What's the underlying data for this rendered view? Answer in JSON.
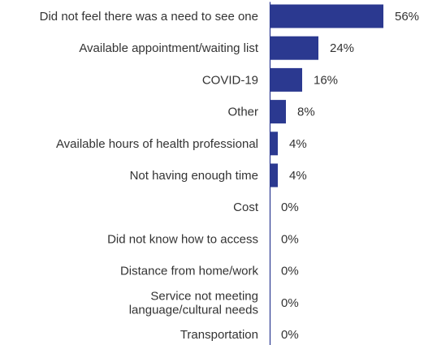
{
  "chart_data": {
    "type": "bar",
    "orientation": "horizontal",
    "title": "",
    "xlabel": "",
    "ylabel": "",
    "xlim": [
      0,
      60
    ],
    "grid": false,
    "legend": "none",
    "bar_color": "#2b3990",
    "axis_color": "#2b3990",
    "categories": [
      "Did not feel there was a need to see one",
      "Available appointment/waiting list",
      "COVID-19",
      "Other",
      "Available hours of health professional",
      "Not having enough time",
      "Cost",
      "Did not know how to access",
      "Distance from home/work",
      "Service not meeting language/cultural needs",
      "Transportation"
    ],
    "category_lines": [
      [
        "Did not feel there was a need to see one"
      ],
      [
        "Available appointment/waiting list"
      ],
      [
        "COVID-19"
      ],
      [
        "Other"
      ],
      [
        "Available hours of health professional"
      ],
      [
        "Not having enough time"
      ],
      [
        "Cost"
      ],
      [
        "Did not know how to access"
      ],
      [
        "Distance from home/work"
      ],
      [
        "Service not meeting",
        "language/cultural needs"
      ],
      [
        "Transportation"
      ]
    ],
    "values": [
      56,
      24,
      16,
      8,
      4,
      4,
      0,
      0,
      0,
      0,
      0
    ],
    "value_labels": [
      "56%",
      "24%",
      "16%",
      "8%",
      "4%",
      "4%",
      "0%",
      "0%",
      "0%",
      "0%",
      "0%"
    ]
  }
}
